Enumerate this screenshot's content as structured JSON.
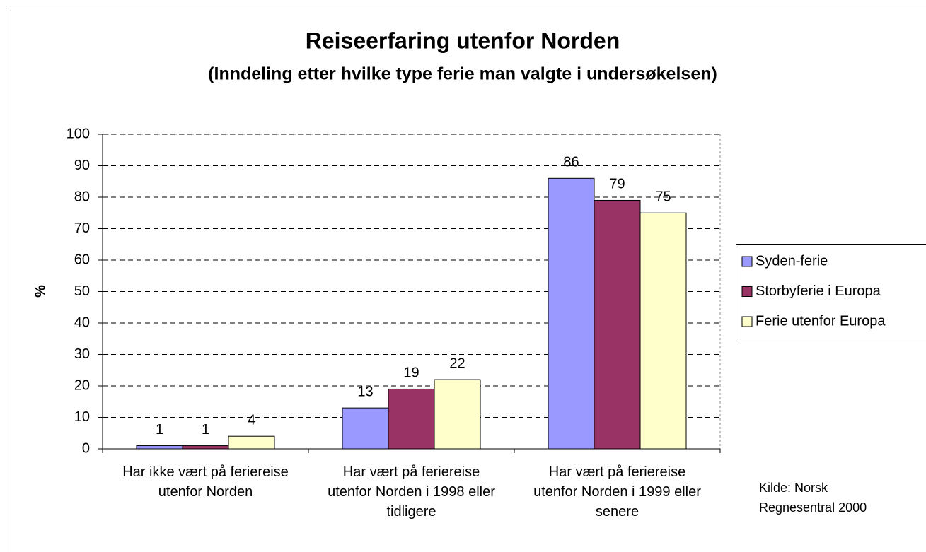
{
  "chart_data": {
    "type": "bar",
    "title": "Reiseerfaring utenfor Norden",
    "subtitle": "(Inndeling etter hvilke type ferie man valgte i undersøkelsen)",
    "y_label": "%",
    "categories": [
      "Har ikke vært på feriereise utenfor Norden",
      "Har vært på feriereise utenfor Norden i 1998 eller tidligere",
      "Har vært på feriereise utenfor Norden i 1999 eller senere"
    ],
    "series": [
      {
        "name": "Syden-ferie",
        "color": "#9999ff",
        "values": [
          1,
          13,
          86
        ]
      },
      {
        "name": "Storbyferie i Europa",
        "color": "#993366",
        "values": [
          1,
          19,
          79
        ]
      },
      {
        "name": "Ferie utenfor Europa",
        "color": "#ffffcc",
        "values": [
          4,
          22,
          75
        ]
      }
    ],
    "ylim": [
      0,
      100
    ],
    "yticks": [
      0,
      10,
      20,
      30,
      40,
      50,
      60,
      70,
      80,
      90,
      100
    ],
    "grid": true,
    "legend": "right",
    "source": "Kilde: Norsk Regnesentral 2000"
  }
}
